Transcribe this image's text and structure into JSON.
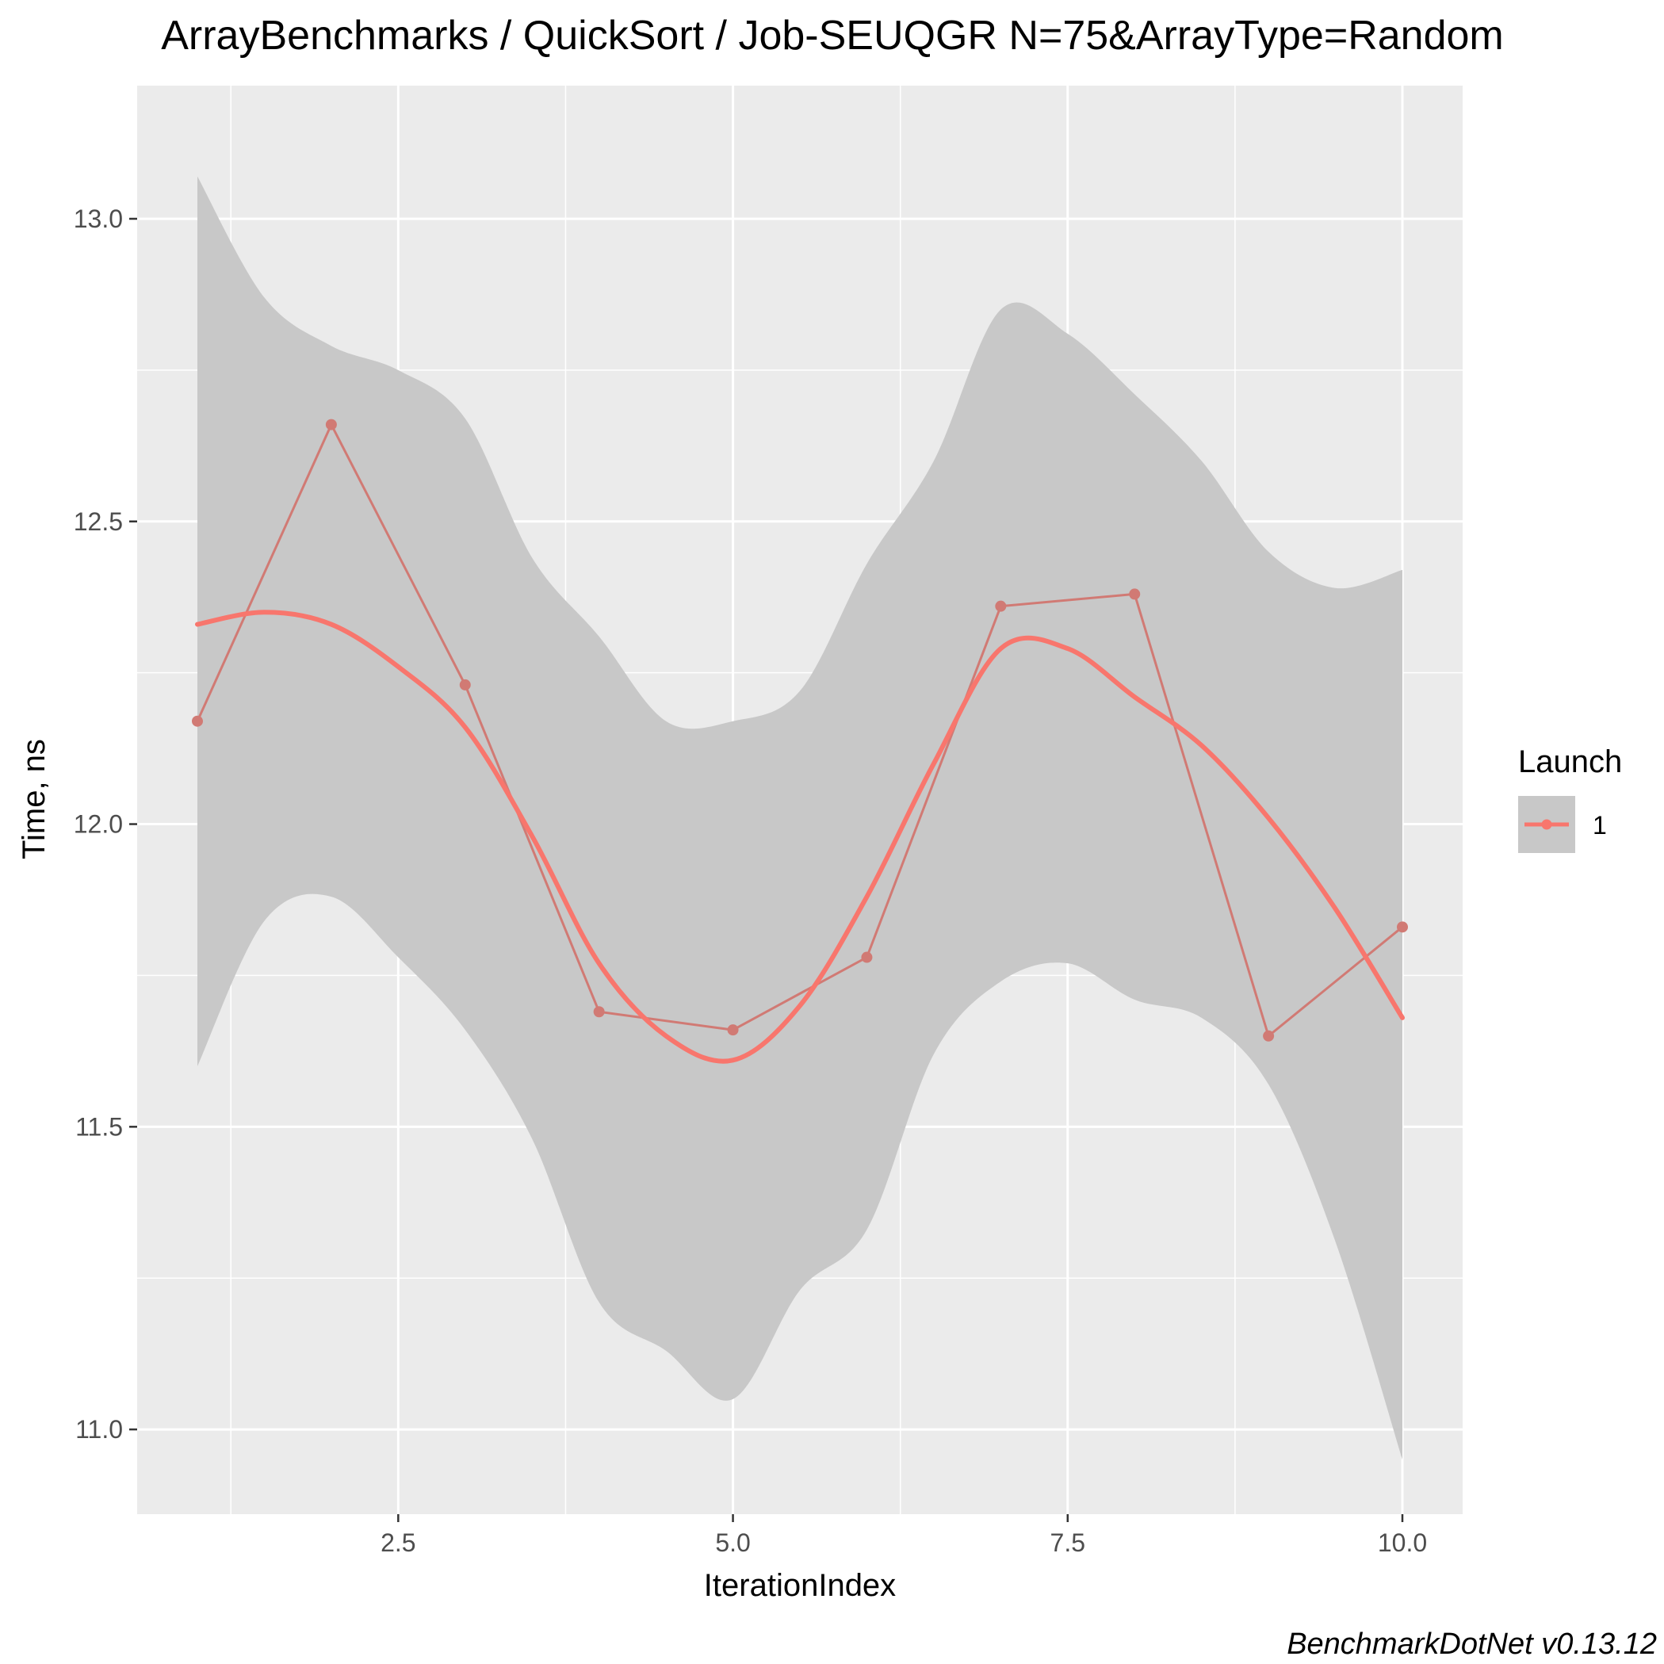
{
  "chart_data": {
    "type": "line",
    "title": "ArrayBenchmarks / QuickSort / Job-SEUQGR N=75&ArrayType=Random",
    "xlabel": "IterationIndex",
    "ylabel": "Time, ns",
    "xlim": [
      0.55,
      10.45
    ],
    "ylim": [
      10.86,
      13.22
    ],
    "x_ticks": [
      2.5,
      5.0,
      7.5,
      10.0
    ],
    "x_tick_labels": [
      "2.5",
      "5.0",
      "7.5",
      "10.0"
    ],
    "y_ticks": [
      11.0,
      11.5,
      12.0,
      12.5,
      13.0
    ],
    "y_tick_labels": [
      "11.0",
      "11.5",
      "12.0",
      "12.5",
      "13.0"
    ],
    "grid": true,
    "legend": {
      "title": "Launch",
      "position": "right"
    },
    "caption": "BenchmarkDotNet v0.13.12",
    "colors": {
      "series": "#f8766d",
      "raw_line": "#d17a74",
      "band": "#c8c8c8",
      "panel": "#ebebeb",
      "grid": "#ffffff"
    },
    "series": [
      {
        "name": "1",
        "x": [
          1,
          2,
          3,
          4,
          5,
          6,
          7,
          8,
          9,
          10
        ],
        "values": [
          12.17,
          12.66,
          12.23,
          11.69,
          11.66,
          11.78,
          12.36,
          12.38,
          11.65,
          11.83
        ]
      }
    ],
    "smooth": {
      "x": [
        1.0,
        1.5,
        2.0,
        2.5,
        3.0,
        3.5,
        4.0,
        4.5,
        5.0,
        5.5,
        6.0,
        6.5,
        7.0,
        7.5,
        8.0,
        8.5,
        9.0,
        9.5,
        10.0
      ],
      "y": [
        12.33,
        12.35,
        12.33,
        12.26,
        12.16,
        11.98,
        11.77,
        11.65,
        11.61,
        11.7,
        11.88,
        12.1,
        12.29,
        12.29,
        12.21,
        12.13,
        12.01,
        11.86,
        11.68
      ],
      "lower": [
        11.6,
        11.84,
        11.88,
        11.78,
        11.66,
        11.48,
        11.21,
        11.13,
        11.05,
        11.23,
        11.33,
        11.62,
        11.74,
        11.77,
        11.71,
        11.68,
        11.57,
        11.31,
        10.95
      ],
      "upper": [
        13.07,
        12.87,
        12.79,
        12.75,
        12.67,
        12.44,
        12.31,
        12.17,
        12.17,
        12.22,
        12.43,
        12.6,
        12.85,
        12.81,
        12.71,
        12.6,
        12.45,
        12.39,
        12.42
      ]
    }
  }
}
